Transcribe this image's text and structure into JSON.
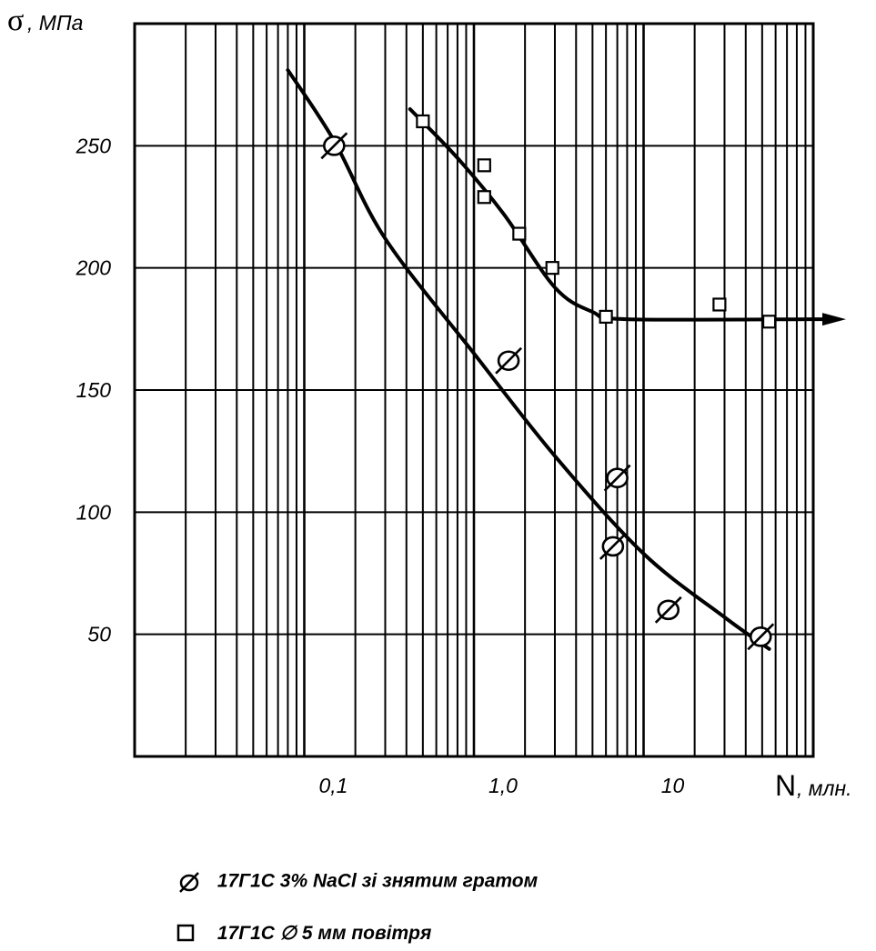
{
  "chart_data": {
    "type": "scatter",
    "title": "",
    "ylabel_symbol": "σ",
    "ylabel_unit": ", МПа",
    "xlabel_symbol": "N",
    "xlabel_unit": ", млн.",
    "x_scale": "log",
    "xlim": [
      0.01,
      100
    ],
    "ylim": [
      0,
      300
    ],
    "y_ticks": [
      50,
      100,
      150,
      200,
      250
    ],
    "y_tick_labels": [
      "50",
      "100",
      "150",
      "200",
      "250"
    ],
    "x_ticks": [
      0.1,
      1,
      10
    ],
    "x_tick_labels": [
      "0,1",
      "1,0",
      "10"
    ],
    "grid": true,
    "legend_position": "bottom",
    "series": [
      {
        "name": "17Г1С 3% NaCl  зі знятим гратом",
        "marker": "circle-slash",
        "points": [
          {
            "x": 0.15,
            "y": 250
          },
          {
            "x": 1.6,
            "y": 162
          },
          {
            "x": 7.0,
            "y": 114
          },
          {
            "x": 6.6,
            "y": 86
          },
          {
            "x": 14,
            "y": 60
          },
          {
            "x": 49,
            "y": 49
          }
        ],
        "curve": [
          {
            "x": 0.08,
            "y": 281
          },
          {
            "x": 0.15,
            "y": 252
          },
          {
            "x": 0.3,
            "y": 212
          },
          {
            "x": 1.0,
            "y": 165
          },
          {
            "x": 3.0,
            "y": 123
          },
          {
            "x": 10,
            "y": 83
          },
          {
            "x": 30,
            "y": 57
          },
          {
            "x": 55,
            "y": 44
          }
        ]
      },
      {
        "name": "17Г1С ∅ 5 мм повітря",
        "marker": "square",
        "points": [
          {
            "x": 0.5,
            "y": 260
          },
          {
            "x": 1.15,
            "y": 242
          },
          {
            "x": 1.15,
            "y": 229
          },
          {
            "x": 1.85,
            "y": 214
          },
          {
            "x": 2.9,
            "y": 200
          },
          {
            "x": 6.0,
            "y": 180
          },
          {
            "x": 28,
            "y": 185
          },
          {
            "x": 55,
            "y": 178
          }
        ],
        "curve": [
          {
            "x": 0.42,
            "y": 265
          },
          {
            "x": 0.8,
            "y": 245
          },
          {
            "x": 1.5,
            "y": 222
          },
          {
            "x": 3.0,
            "y": 192
          },
          {
            "x": 5.0,
            "y": 182
          },
          {
            "x": 8.0,
            "y": 179
          },
          {
            "x": 100,
            "y": 179
          }
        ],
        "arrow": true
      }
    ]
  }
}
